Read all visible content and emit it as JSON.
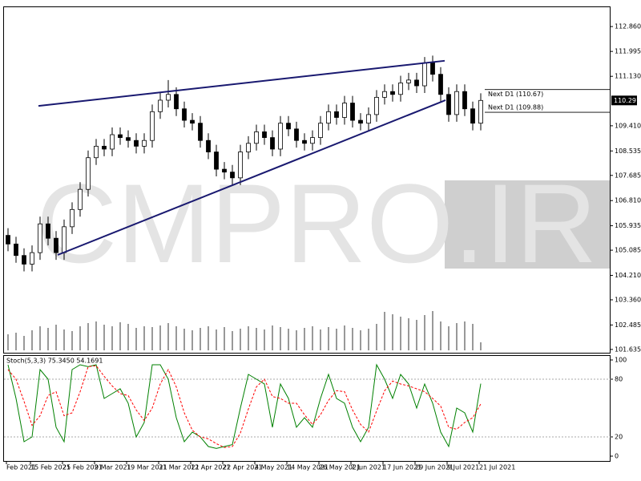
{
  "chart_data": [
    {
      "type": "candlestick",
      "watermark": "CMPRO.IR",
      "categories": [
        "Feb 2021",
        null,
        null,
        "15 Feb 2021",
        null,
        null,
        null,
        "25 Feb 2021",
        null,
        null,
        null,
        "9 Mar 2021",
        null,
        null,
        null,
        "19 Mar 2021",
        null,
        null,
        null,
        "31 Mar 2021",
        null,
        null,
        null,
        "12 Apr 2021",
        null,
        null,
        null,
        "22 Apr 2021",
        null,
        null,
        null,
        "4 May 2021",
        null,
        null,
        null,
        "14 May 2021",
        null,
        null,
        null,
        "26 May 2021",
        null,
        null,
        null,
        "7 Jun 2021",
        null,
        null,
        null,
        "17 Jun 2021",
        null,
        null,
        null,
        "29 Jun 2021",
        null,
        null,
        null,
        "9 Jul 2021",
        null,
        null,
        null,
        "21 Jul 2021"
      ],
      "open": [
        105.6,
        105.3,
        104.9,
        104.6,
        105.0,
        106.0,
        105.5,
        105.0,
        105.9,
        106.5,
        107.2,
        108.3,
        108.7,
        108.6,
        109.1,
        109.0,
        108.9,
        108.7,
        108.9,
        109.9,
        110.3,
        110.5,
        110.0,
        109.6,
        109.5,
        108.9,
        108.5,
        107.9,
        107.8,
        107.6,
        108.5,
        108.8,
        109.2,
        109.0,
        108.6,
        109.5,
        109.3,
        108.9,
        108.8,
        109.0,
        109.5,
        109.9,
        109.7,
        110.2,
        109.6,
        109.5,
        109.8,
        110.4,
        110.6,
        110.5,
        110.9,
        111.0,
        110.8,
        111.6,
        111.2,
        110.5,
        109.8,
        110.6,
        110.0,
        109.5
      ],
      "high": [
        105.85,
        105.55,
        105.15,
        105.25,
        106.25,
        106.25,
        105.75,
        106.15,
        106.75,
        107.45,
        108.55,
        108.95,
        108.95,
        109.35,
        109.35,
        109.25,
        109.15,
        109.15,
        110.15,
        110.55,
        111.0,
        110.75,
        110.25,
        109.85,
        109.75,
        109.15,
        108.75,
        108.15,
        108.05,
        108.75,
        109.05,
        109.45,
        109.45,
        109.25,
        109.75,
        109.75,
        109.55,
        109.15,
        109.25,
        109.75,
        110.15,
        110.15,
        110.45,
        110.45,
        109.85,
        110.05,
        110.65,
        110.85,
        110.85,
        111.15,
        111.25,
        111.25,
        111.8,
        111.85,
        111.45,
        110.75,
        110.85,
        110.85,
        110.25,
        110.54
      ],
      "low": [
        105.05,
        104.65,
        104.35,
        104.35,
        104.75,
        105.25,
        104.75,
        104.75,
        105.65,
        106.25,
        106.95,
        108.05,
        108.35,
        108.35,
        108.75,
        108.65,
        108.45,
        108.45,
        108.65,
        109.65,
        110.05,
        109.75,
        109.35,
        109.25,
        108.65,
        108.25,
        107.65,
        107.55,
        107.35,
        107.35,
        108.25,
        108.55,
        108.75,
        108.35,
        108.35,
        109.05,
        108.65,
        108.55,
        108.55,
        108.75,
        109.25,
        109.45,
        109.45,
        109.35,
        109.25,
        109.25,
        109.55,
        110.15,
        110.25,
        110.25,
        110.65,
        110.55,
        110.55,
        110.95,
        110.25,
        109.55,
        109.55,
        109.75,
        109.25,
        109.25
      ],
      "close": [
        105.3,
        104.9,
        104.6,
        105.0,
        106.0,
        105.5,
        105.0,
        105.9,
        106.5,
        107.2,
        108.3,
        108.7,
        108.6,
        109.1,
        109.0,
        108.9,
        108.7,
        108.9,
        109.9,
        110.3,
        110.5,
        110.0,
        109.6,
        109.5,
        108.9,
        108.5,
        107.9,
        107.8,
        107.6,
        108.5,
        108.8,
        109.2,
        109.0,
        108.6,
        109.5,
        109.3,
        108.9,
        108.8,
        109.0,
        109.5,
        109.9,
        109.7,
        110.2,
        109.6,
        109.5,
        109.8,
        110.4,
        110.6,
        110.5,
        110.9,
        111.0,
        110.8,
        111.6,
        111.2,
        110.5,
        109.8,
        110.6,
        110.0,
        109.5,
        110.291
      ],
      "volumes": [
        20,
        22,
        18,
        25,
        30,
        28,
        32,
        26,
        24,
        30,
        34,
        36,
        32,
        30,
        35,
        33,
        28,
        30,
        29,
        31,
        34,
        30,
        27,
        25,
        28,
        30,
        26,
        29,
        24,
        27,
        30,
        28,
        26,
        31,
        29,
        27,
        25,
        28,
        30,
        26,
        29,
        27,
        31,
        28,
        25,
        27,
        33,
        48,
        45,
        42,
        40,
        38,
        44,
        49,
        36,
        30,
        34,
        36,
        33,
        10
      ],
      "ylim": [
        101.52,
        113.56
      ],
      "yticks": [
        {
          "value": 112.86,
          "label": "112.860"
        },
        111.995,
        {
          "value": 111.13,
          "label": "111.130"
        },
        {
          "value": 109.41,
          "label": "109.410"
        },
        108.535,
        107.685,
        {
          "value": 106.81,
          "label": "106.810"
        },
        105.935,
        105.085,
        {
          "value": 104.21,
          "label": "104.210"
        },
        {
          "value": 103.36,
          "label": "103.360"
        },
        102.485,
        101.635
      ],
      "last_price": 110.291,
      "levels": [
        {
          "value": 110.67,
          "label": "Next D1 (110.67)"
        },
        {
          "value": 109.88,
          "label": "Next D1 (109.88)"
        }
      ],
      "trendlines": [
        {
          "x": [
            3.8,
            54.5
          ],
          "y": [
            110.1,
            111.67
          ],
          "color": "#191970"
        },
        {
          "x": [
            6.2,
            54.6
          ],
          "y": [
            104.92,
            110.3
          ],
          "color": "#191970"
        }
      ]
    },
    {
      "type": "line",
      "title": "Stoch(5,3,3) 75.3450 54.1691",
      "ylim": [
        -5,
        105
      ],
      "yticks": [
        0,
        20,
        80,
        100
      ],
      "levels": [
        20,
        80
      ],
      "series": [
        {
          "color": "#008000",
          "dashed": false,
          "values": [
            95,
            60,
            15,
            20,
            90,
            80,
            30,
            15,
            90,
            95,
            93,
            95,
            60,
            65,
            70,
            55,
            20,
            35,
            95,
            95,
            80,
            40,
            15,
            25,
            20,
            10,
            8,
            10,
            12,
            50,
            85,
            80,
            75,
            30,
            75,
            60,
            30,
            40,
            30,
            60,
            85,
            60,
            55,
            30,
            15,
            30,
            95,
            80,
            60,
            85,
            75,
            50,
            75,
            55,
            25,
            10,
            50,
            45,
            25,
            75.345
          ]
        },
        {
          "color": "#ff0000",
          "dashed": true,
          "values": [
            90,
            80,
            57,
            32,
            42,
            63,
            67,
            42,
            45,
            67,
            93,
            94,
            83,
            73,
            65,
            63,
            48,
            37,
            50,
            75,
            90,
            72,
            45,
            27,
            20,
            18,
            13,
            9,
            10,
            24,
            49,
            72,
            80,
            62,
            60,
            55,
            55,
            43,
            33,
            43,
            58,
            68,
            67,
            48,
            33,
            25,
            47,
            68,
            78,
            75,
            73,
            70,
            67,
            60,
            52,
            30,
            28,
            35,
            40,
            54.1691
          ]
        }
      ]
    }
  ]
}
